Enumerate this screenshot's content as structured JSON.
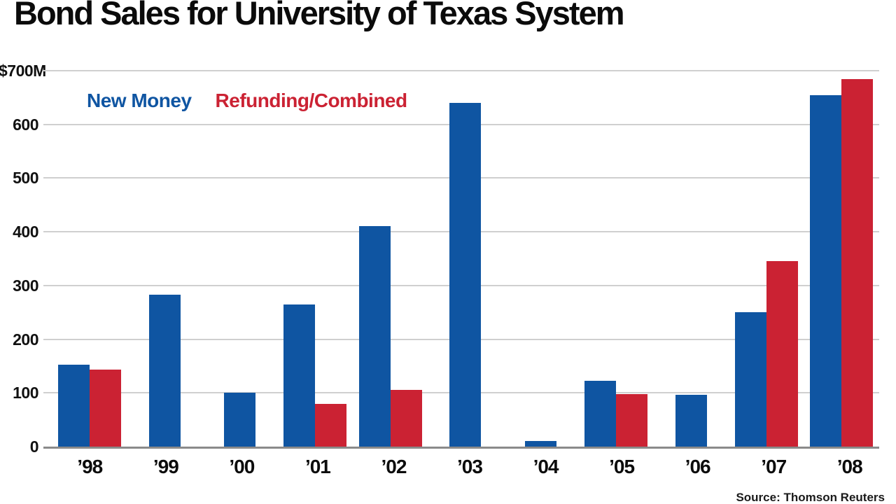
{
  "chart_data": {
    "type": "bar",
    "title": "Bond Sales for University of Texas System",
    "categories": [
      "’98",
      "’99",
      "’00",
      "’01",
      "’02",
      "’03",
      "’04",
      "’05",
      "’06",
      "’07",
      "’08"
    ],
    "series": [
      {
        "name": "New Money",
        "short": "new-money",
        "color": "#0F55A2",
        "values": [
          152,
          283,
          100,
          265,
          410,
          640,
          10,
          123,
          97,
          250,
          655
        ]
      },
      {
        "name": "Refunding/Combined",
        "short": "refunding-combined",
        "color": "#CB2233",
        "values": [
          144,
          null,
          null,
          80,
          105,
          null,
          null,
          98,
          null,
          345,
          685
        ]
      }
    ],
    "yticks": [
      "$700M",
      "600",
      "500",
      "400",
      "300",
      "200",
      "100",
      "0"
    ],
    "ylim": [
      0,
      700
    ],
    "ylabel": "",
    "xlabel": "",
    "grid": true,
    "legend_position": "top-left",
    "source": "Source: Thomson Reuters",
    "colors": {
      "axis": "#8a8a8a",
      "gridline": "#cfcfcf",
      "title": "#0b0b0b"
    }
  }
}
